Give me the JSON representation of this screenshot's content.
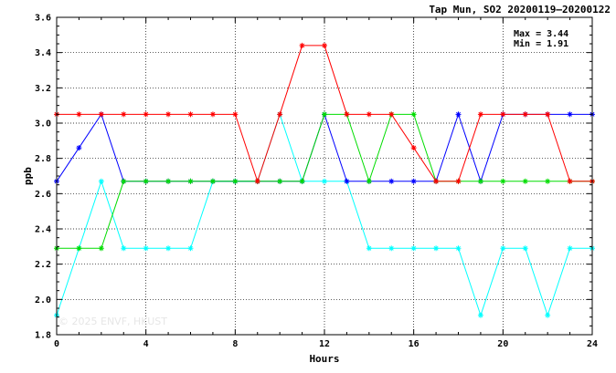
{
  "chart_data": {
    "type": "line",
    "title": "Tap Mun, SO2 20200119–20200122",
    "xlabel": "Hours",
    "ylabel": "ppb",
    "xlim": [
      0,
      24
    ],
    "ylim": [
      1.8,
      3.6
    ],
    "x_ticks": [
      "0",
      "4",
      "8",
      "12",
      "16",
      "20",
      "24"
    ],
    "y_ticks": [
      "1.8",
      "2.0",
      "2.2",
      "2.4",
      "2.6",
      "2.8",
      "3.0",
      "3.2",
      "3.4",
      "3.6"
    ],
    "grid": true,
    "x": [
      0,
      1,
      2,
      3,
      4,
      5,
      6,
      7,
      8,
      9,
      10,
      11,
      12,
      13,
      14,
      15,
      16,
      17,
      18,
      19,
      20,
      21,
      22,
      23,
      24
    ],
    "series": [
      {
        "color": "#ff0000",
        "values": [
          3.05,
          3.05,
          3.05,
          3.05,
          3.05,
          3.05,
          3.05,
          3.05,
          3.05,
          2.67,
          3.05,
          3.44,
          3.44,
          3.05,
          3.05,
          3.05,
          2.86,
          2.67,
          2.67,
          3.05,
          3.05,
          3.05,
          3.05,
          2.67,
          2.67
        ]
      },
      {
        "color": "#00dd00",
        "values": [
          2.29,
          2.29,
          2.29,
          2.67,
          2.67,
          2.67,
          2.67,
          2.67,
          2.67,
          2.67,
          2.67,
          2.67,
          3.05,
          3.05,
          2.67,
          3.05,
          3.05,
          2.67,
          2.67,
          2.67,
          2.67,
          2.67,
          2.67,
          2.67,
          2.67
        ]
      },
      {
        "color": "#0000ff",
        "values": [
          2.67,
          2.86,
          3.05,
          2.67,
          2.67,
          2.67,
          2.67,
          2.67,
          2.67,
          2.67,
          2.67,
          2.67,
          3.05,
          2.67,
          2.67,
          2.67,
          2.67,
          2.67,
          3.05,
          2.67,
          3.05,
          3.05,
          3.05,
          3.05,
          3.05
        ]
      },
      {
        "color": "#00ffff",
        "values": [
          1.91,
          2.29,
          2.67,
          2.29,
          2.29,
          2.29,
          2.29,
          2.67,
          2.67,
          2.67,
          3.05,
          2.67,
          2.67,
          2.67,
          2.29,
          2.29,
          2.29,
          2.29,
          2.29,
          1.91,
          2.29,
          2.29,
          1.91,
          2.29,
          2.29
        ]
      }
    ],
    "stats": {
      "max_label": "Max = 3.44",
      "min_label": "Min = 1.91"
    },
    "watermark": "© 2025  ENVF, HKUST"
  }
}
